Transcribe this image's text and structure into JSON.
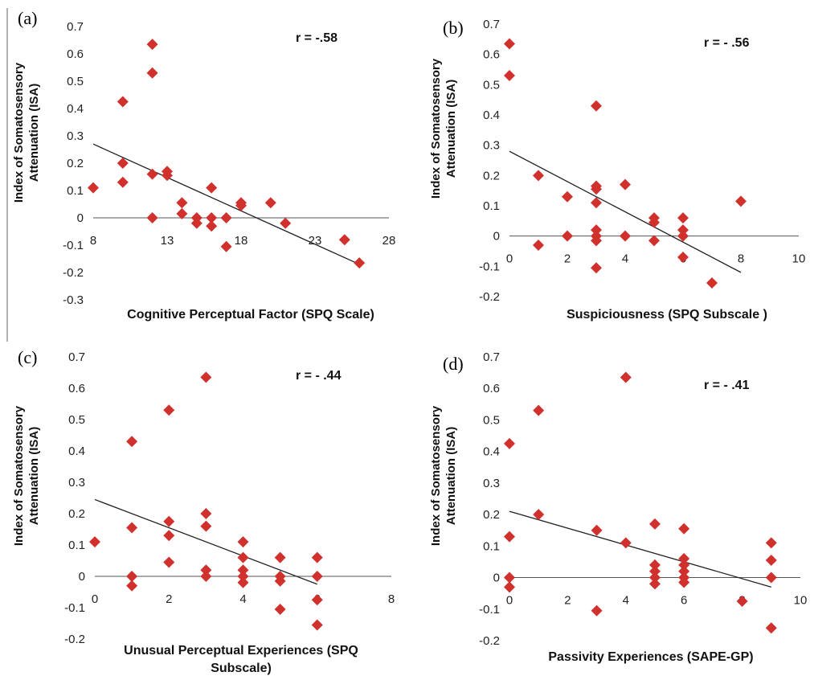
{
  "chart_data": [
    {
      "type": "scatter",
      "panel": "(a)",
      "ylabel_line1": "Index of Somatosensory",
      "ylabel_line2": "Attenuation (ISA)",
      "xlabel_line1": "Cognitive Perceptual Factor (SPQ Scale)",
      "xlabel_line2": "",
      "annotation": "r = -.58",
      "xlim": [
        8,
        28
      ],
      "ylim": [
        -0.3,
        0.7
      ],
      "xticks": [
        8,
        13,
        18,
        23,
        28
      ],
      "xtick_labels": [
        "8",
        "13",
        "18",
        "23",
        "28"
      ],
      "yticks": [
        -0.3,
        -0.2,
        -0.1,
        0,
        0.1,
        0.2,
        0.3,
        0.4,
        0.5,
        0.6,
        0.7
      ],
      "ytick_labels": [
        "-0.3",
        "-0.2",
        "-0.1",
        "0",
        "0.1",
        "0.2",
        "0.3",
        "0.4",
        "0.5",
        "0.6",
        "0.7"
      ],
      "trendline": [
        [
          8,
          0.27
        ],
        [
          26,
          -0.17
        ]
      ],
      "points": [
        [
          8,
          0.11
        ],
        [
          10,
          0.425
        ],
        [
          10,
          0.2
        ],
        [
          10,
          0.13
        ],
        [
          12,
          0.635
        ],
        [
          12,
          0.53
        ],
        [
          12,
          0.16
        ],
        [
          12,
          0.0
        ],
        [
          13,
          0.17
        ],
        [
          13,
          0.155
        ],
        [
          14,
          0.055
        ],
        [
          14,
          0.015
        ],
        [
          15,
          0.0
        ],
        [
          15,
          -0.02
        ],
        [
          16,
          0.11
        ],
        [
          16,
          0.0
        ],
        [
          16,
          -0.03
        ],
        [
          17,
          0.0
        ],
        [
          17,
          -0.105
        ],
        [
          18,
          0.055
        ],
        [
          18,
          0.045
        ],
        [
          20,
          0.055
        ],
        [
          21,
          -0.02
        ],
        [
          25,
          -0.08
        ],
        [
          26,
          -0.165
        ]
      ]
    },
    {
      "type": "scatter",
      "panel": "(b)",
      "ylabel_line1": "Index of Somatosensory",
      "ylabel_line2": "Attenuation (ISA)",
      "xlabel_line1": "Suspiciousness (SPQ Subscale )",
      "xlabel_line2": "",
      "annotation": "r = - .56",
      "xlim": [
        0,
        10
      ],
      "ylim": [
        -0.2,
        0.7
      ],
      "xticks": [
        0,
        2,
        4,
        6,
        8,
        10
      ],
      "xtick_labels": [
        "0",
        "2",
        "4",
        "6",
        "8",
        "10"
      ],
      "yticks": [
        -0.2,
        -0.1,
        0,
        0.1,
        0.2,
        0.3,
        0.4,
        0.5,
        0.6,
        0.7
      ],
      "ytick_labels": [
        "-0.2",
        "-0.1",
        "0",
        "0.1",
        "0.2",
        "0.3",
        "0.4",
        "0.5",
        "0.6",
        "0.7"
      ],
      "trendline": [
        [
          0,
          0.28
        ],
        [
          8,
          -0.12
        ]
      ],
      "points": [
        [
          0,
          0.635
        ],
        [
          0,
          0.53
        ],
        [
          1,
          0.2
        ],
        [
          1,
          -0.03
        ],
        [
          2,
          0.13
        ],
        [
          2,
          0.0
        ],
        [
          3,
          0.43
        ],
        [
          3,
          0.165
        ],
        [
          3,
          0.155
        ],
        [
          3,
          0.11
        ],
        [
          3,
          0.02
        ],
        [
          3,
          0.0
        ],
        [
          3,
          -0.015
        ],
        [
          3,
          -0.105
        ],
        [
          4,
          0.17
        ],
        [
          4,
          0.0
        ],
        [
          5,
          0.06
        ],
        [
          5,
          0.045
        ],
        [
          5,
          -0.015
        ],
        [
          6,
          0.06
        ],
        [
          6,
          0.02
        ],
        [
          6,
          0.0
        ],
        [
          6,
          -0.07
        ],
        [
          7,
          -0.155
        ],
        [
          8,
          0.115
        ]
      ]
    },
    {
      "type": "scatter",
      "panel": "(c)",
      "ylabel_line1": "Index of Somatosensory",
      "ylabel_line2": "Attenuation (ISA)",
      "xlabel_line1": "Unusual Perceptual Experiences (SPQ",
      "xlabel_line2": "Subscale)",
      "annotation": "r = - .44",
      "xlim": [
        0,
        8
      ],
      "ylim": [
        -0.2,
        0.7
      ],
      "xticks": [
        0,
        2,
        4,
        6,
        8
      ],
      "xtick_labels": [
        "0",
        "2",
        "4",
        "6",
        "8"
      ],
      "yticks": [
        -0.2,
        -0.1,
        0,
        0.1,
        0.2,
        0.3,
        0.4,
        0.5,
        0.6,
        0.7
      ],
      "ytick_labels": [
        "-0.2",
        "-0.1",
        "0",
        "0.1",
        "0.2",
        "0.3",
        "0.4",
        "0.5",
        "0.6",
        "0.7"
      ],
      "trendline": [
        [
          0,
          0.245
        ],
        [
          6,
          -0.025
        ]
      ],
      "points": [
        [
          0,
          0.11
        ],
        [
          1,
          0.43
        ],
        [
          1,
          0.155
        ],
        [
          1,
          0.0
        ],
        [
          1,
          -0.03
        ],
        [
          2,
          0.53
        ],
        [
          2,
          0.175
        ],
        [
          2,
          0.13
        ],
        [
          2,
          0.045
        ],
        [
          3,
          0.635
        ],
        [
          3,
          0.2
        ],
        [
          3,
          0.16
        ],
        [
          3,
          0.02
        ],
        [
          3,
          0.0
        ],
        [
          4,
          0.11
        ],
        [
          4,
          0.06
        ],
        [
          4,
          0.02
        ],
        [
          4,
          0.0
        ],
        [
          4,
          -0.02
        ],
        [
          5,
          0.06
        ],
        [
          5,
          0.0
        ],
        [
          5,
          -0.015
        ],
        [
          5,
          -0.105
        ],
        [
          6,
          0.06
        ],
        [
          6,
          0.0
        ],
        [
          6,
          -0.075
        ],
        [
          6,
          -0.155
        ]
      ]
    },
    {
      "type": "scatter",
      "panel": "(d)",
      "ylabel_line1": "Index of Somatosensory",
      "ylabel_line2": "Attenuation (ISA)",
      "xlabel_line1": "Passivity Experiences (SAPE-GP)",
      "xlabel_line2": "",
      "annotation": "r = - .41",
      "xlim": [
        0,
        10
      ],
      "ylim": [
        -0.2,
        0.7
      ],
      "xticks": [
        0,
        2,
        4,
        6,
        8,
        10
      ],
      "xtick_labels": [
        "0",
        "2",
        "4",
        "6",
        "8",
        "10"
      ],
      "yticks": [
        -0.2,
        -0.1,
        0,
        0.1,
        0.2,
        0.3,
        0.4,
        0.5,
        0.6,
        0.7
      ],
      "ytick_labels": [
        "-0.2",
        "-0.1",
        "0",
        "0.1",
        "0.2",
        "0.3",
        "0.4",
        "0.5",
        "0.6",
        "0.7"
      ],
      "trendline": [
        [
          0,
          0.21
        ],
        [
          9,
          -0.03
        ]
      ],
      "points": [
        [
          0,
          0.425
        ],
        [
          0,
          0.13
        ],
        [
          0,
          0.0
        ],
        [
          0,
          -0.03
        ],
        [
          1,
          0.53
        ],
        [
          1,
          0.2
        ],
        [
          3,
          0.15
        ],
        [
          3,
          -0.105
        ],
        [
          4,
          0.635
        ],
        [
          4,
          0.11
        ],
        [
          5,
          0.17
        ],
        [
          5,
          0.04
        ],
        [
          5,
          0.02
        ],
        [
          5,
          0.0
        ],
        [
          5,
          -0.02
        ],
        [
          6,
          0.155
        ],
        [
          6,
          0.06
        ],
        [
          6,
          0.04
        ],
        [
          6,
          0.02
        ],
        [
          6,
          0.0
        ],
        [
          6,
          -0.015
        ],
        [
          8,
          -0.075
        ],
        [
          9,
          0.11
        ],
        [
          9,
          0.055
        ],
        [
          9,
          0.0
        ],
        [
          9,
          -0.16
        ]
      ]
    }
  ]
}
